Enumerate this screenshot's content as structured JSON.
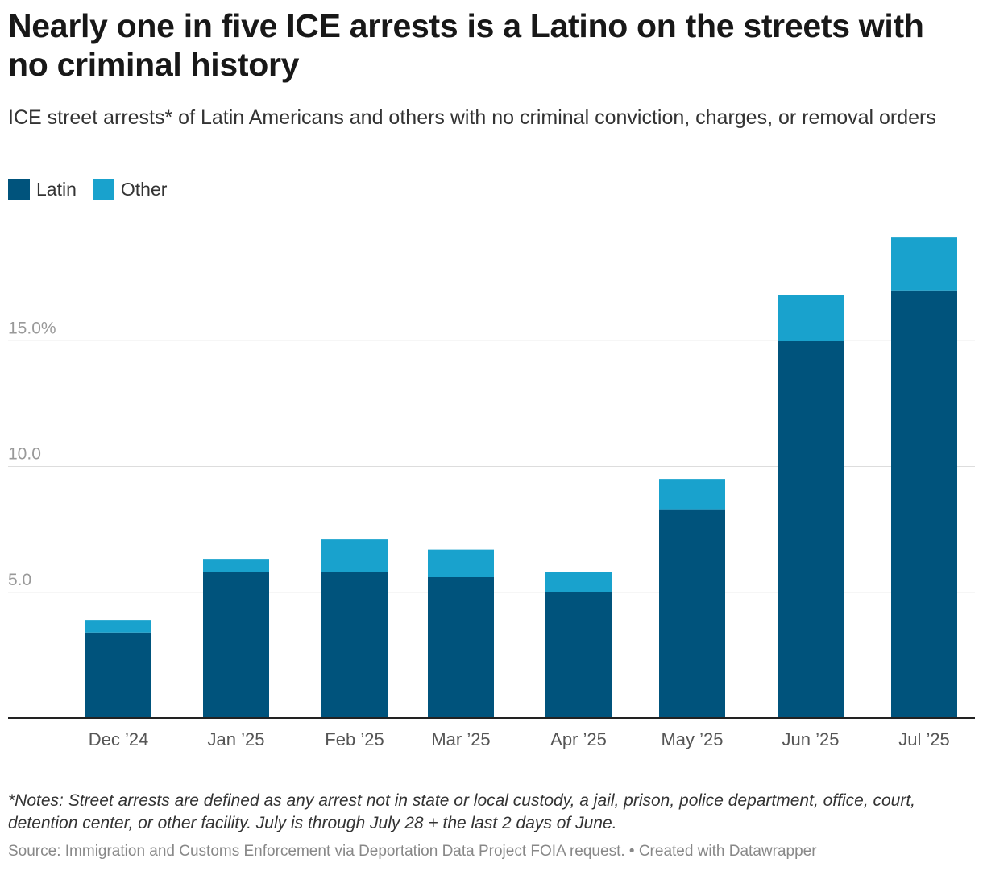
{
  "header": {
    "title": "Nearly one in five ICE arrests is a Latino on the streets with no criminal history",
    "subtitle": "ICE street arrests* of Latin Americans and others with no criminal conviction, charges, or removal orders"
  },
  "legend": {
    "items": [
      {
        "label": "Latin",
        "color": "#00537c"
      },
      {
        "label": "Other",
        "color": "#19a2cd"
      }
    ]
  },
  "chart_data": {
    "type": "bar",
    "stacked": true,
    "categories": [
      "Dec ’24",
      "Jan ’25",
      "Feb ’25",
      "Mar ’25",
      "Apr ’25",
      "May ’25",
      "Jun ’25",
      "Jul ’25"
    ],
    "series": [
      {
        "name": "Latin",
        "color": "#00537c",
        "values": [
          3.4,
          5.8,
          5.8,
          5.6,
          5.0,
          8.3,
          15.0,
          17.0
        ]
      },
      {
        "name": "Other",
        "color": "#19a2cd",
        "values": [
          0.5,
          0.5,
          1.3,
          1.1,
          0.8,
          1.2,
          1.8,
          2.1
        ]
      }
    ],
    "y_ticks": [
      {
        "value": 5,
        "label": "5.0"
      },
      {
        "value": 10,
        "label": "10.0"
      },
      {
        "value": 15,
        "label": "15.0%"
      }
    ],
    "ylim": [
      0,
      19.5
    ],
    "grid": true,
    "legend_position": "top-left"
  },
  "footer": {
    "notes": "*Notes: Street arrests are defined as any arrest not in state or local custody, a jail, prison, police department, office, court, detention center, or other facility. July is through July 28 + the last 2 days of June.",
    "source": "Source: Immigration and Customs Enforcement via Deportation Data Project FOIA request. • Created with Datawrapper"
  }
}
